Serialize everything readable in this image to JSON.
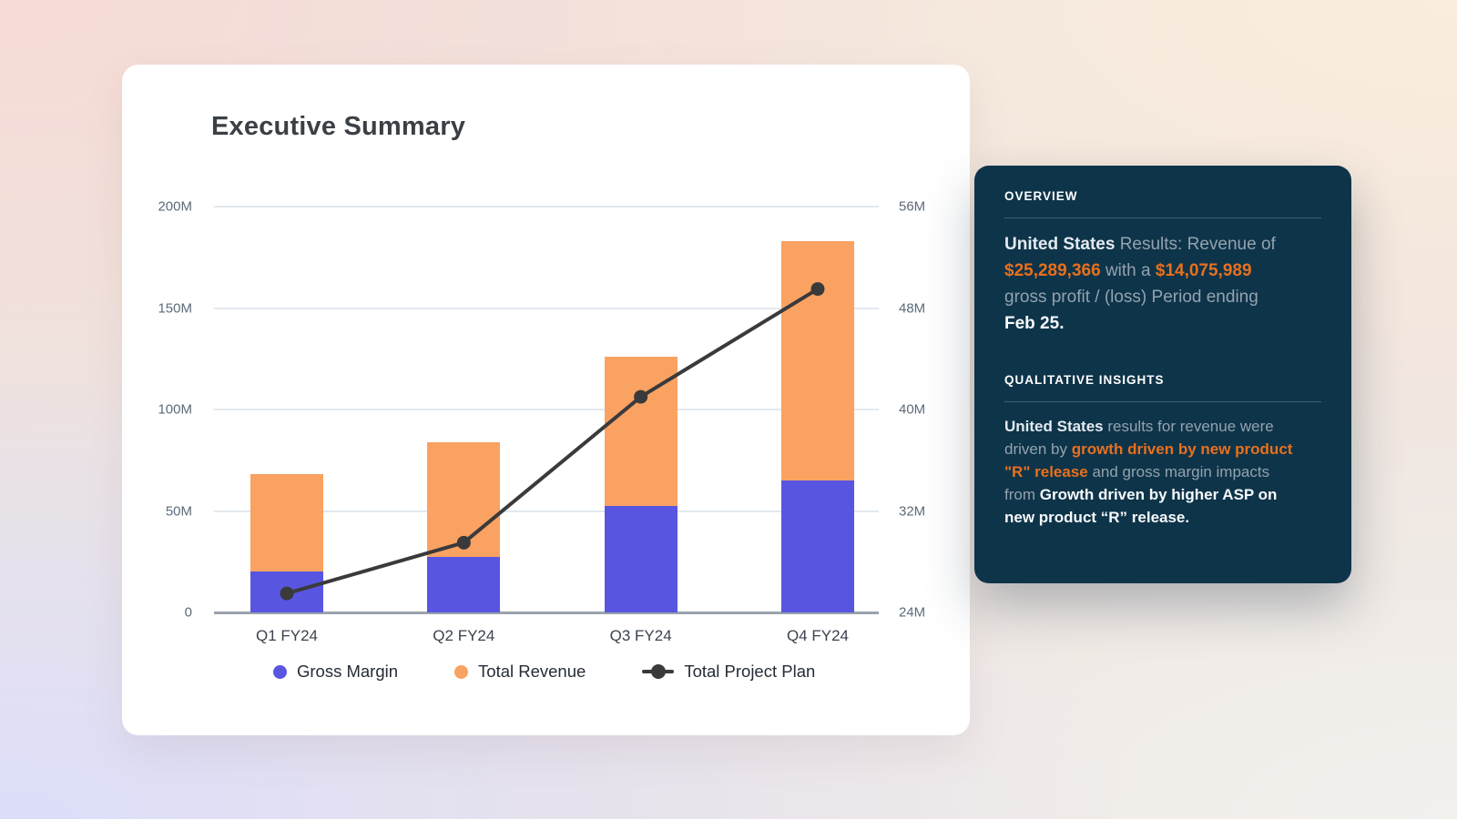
{
  "colors": {
    "card_bg": "#FFFFFF",
    "panel_bg": "#0E3449",
    "accent_orange": "#E8701E",
    "bar_purple": "#5856E0",
    "bar_orange": "#FAA262",
    "line_dark": "#3A3A3C"
  },
  "card": {
    "title": "Executive Summary"
  },
  "chart_data": {
    "type": "bar",
    "subtype": "stacked-bars-with-line-overlay",
    "title": "Executive Summary",
    "categories": [
      "Q1 FY24",
      "Q2 FY24",
      "Q3 FY24",
      "Q4 FY24"
    ],
    "series": [
      {
        "name": "Gross Margin",
        "type": "bar",
        "axis": "left",
        "color": "#5856E0",
        "values": [
          20,
          27.5,
          52.5,
          65
        ]
      },
      {
        "name": "Total Revenue",
        "type": "bar",
        "axis": "left",
        "color": "#FAA262",
        "values_are_stack_totals": true,
        "values": [
          68,
          84,
          126,
          183
        ]
      },
      {
        "name": "Total Project Plan",
        "type": "line",
        "axis": "right",
        "color": "#3A3A3C",
        "values": [
          25.5,
          29.5,
          41,
          49.5
        ]
      }
    ],
    "left_axis": {
      "unit": "M",
      "min": 0,
      "max": 200,
      "ticks_top_to_bottom": [
        "200M",
        "150M",
        "100M",
        "50M",
        "0"
      ]
    },
    "right_axis": {
      "unit": "M",
      "min": 24,
      "max": 56,
      "ticks_top_to_bottom": [
        "56M",
        "48M",
        "40M",
        "32M",
        "24M"
      ]
    },
    "grid": true,
    "legend_position": "bottom"
  },
  "panel": {
    "overview": {
      "heading": "OVERVIEW",
      "segments": [
        {
          "text": "United States",
          "style": "bold-light"
        },
        {
          "text": " Results: Revenue of\n",
          "style": "muted"
        },
        {
          "text": "$25,289,366",
          "style": "orange"
        },
        {
          "text": " with a ",
          "style": "muted"
        },
        {
          "text": "$14,075,989",
          "style": "orange"
        },
        {
          "text": "\ngross profit / (loss) Period ending\n",
          "style": "muted"
        },
        {
          "text": "Feb 25.",
          "style": "bold-white"
        }
      ]
    },
    "insights": {
      "heading": "QUALITATIVE INSIGHTS",
      "segments": [
        {
          "text": "United States",
          "style": "bold-light"
        },
        {
          "text": " results for revenue were\ndriven by ",
          "style": "muted"
        },
        {
          "text": "growth driven by new product\n\"R\" release",
          "style": "orange"
        },
        {
          "text": " and gross margin impacts\nfrom ",
          "style": "muted"
        },
        {
          "text": "Growth driven by higher ASP on\nnew product “R” release.",
          "style": "bold-white"
        }
      ]
    }
  }
}
